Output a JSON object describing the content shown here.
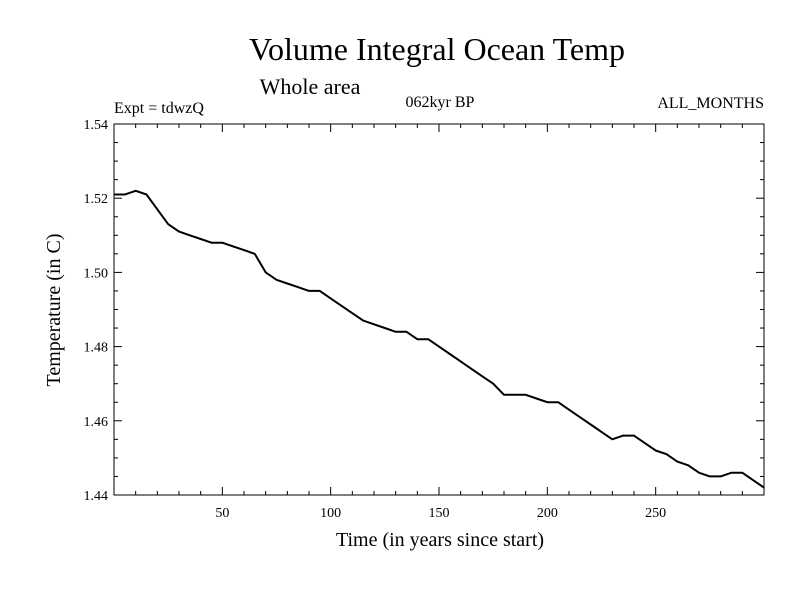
{
  "chart_data": {
    "type": "line",
    "title": "Volume Integral Ocean Temp",
    "subtitle": "Whole area",
    "header_left": "Expt = tdwzQ",
    "header_center": "062kyr BP",
    "header_right": "ALL_MONTHS",
    "xlabel": "Time (in years since start)",
    "ylabel": "Temperature (in C)",
    "xlim": [
      0,
      300
    ],
    "ylim": [
      1.44,
      1.54
    ],
    "x_ticks": [
      50,
      100,
      150,
      200,
      250
    ],
    "x_tick_labels": [
      "50",
      "100",
      "150",
      "200",
      "250"
    ],
    "y_ticks": [
      1.44,
      1.46,
      1.48,
      1.5,
      1.52,
      1.54
    ],
    "y_tick_labels": [
      "1.44",
      "1.46",
      "1.48",
      "1.50",
      "1.52",
      "1.54"
    ],
    "grid": false,
    "line_color": "#000000",
    "series": [
      {
        "x": [
          0,
          5,
          10,
          15,
          20,
          25,
          30,
          35,
          40,
          45,
          50,
          55,
          60,
          65,
          70,
          75,
          80,
          85,
          90,
          95,
          100,
          105,
          110,
          115,
          120,
          125,
          130,
          135,
          140,
          145,
          150,
          155,
          160,
          165,
          170,
          175,
          180,
          185,
          190,
          195,
          200,
          205,
          210,
          215,
          220,
          225,
          230,
          235,
          240,
          245,
          250,
          255,
          260,
          265,
          270,
          275,
          280,
          285,
          290,
          295,
          300
        ],
        "y": [
          1.521,
          1.521,
          1.522,
          1.521,
          1.517,
          1.513,
          1.511,
          1.51,
          1.509,
          1.508,
          1.508,
          1.507,
          1.506,
          1.505,
          1.5,
          1.498,
          1.497,
          1.496,
          1.495,
          1.495,
          1.493,
          1.491,
          1.489,
          1.487,
          1.486,
          1.485,
          1.484,
          1.484,
          1.482,
          1.482,
          1.48,
          1.478,
          1.476,
          1.474,
          1.472,
          1.47,
          1.467,
          1.467,
          1.467,
          1.466,
          1.465,
          1.465,
          1.463,
          1.461,
          1.459,
          1.457,
          1.455,
          1.456,
          1.456,
          1.454,
          1.452,
          1.451,
          1.449,
          1.448,
          1.446,
          1.445,
          1.445,
          1.446,
          1.446,
          1.444,
          1.442
        ]
      }
    ]
  }
}
